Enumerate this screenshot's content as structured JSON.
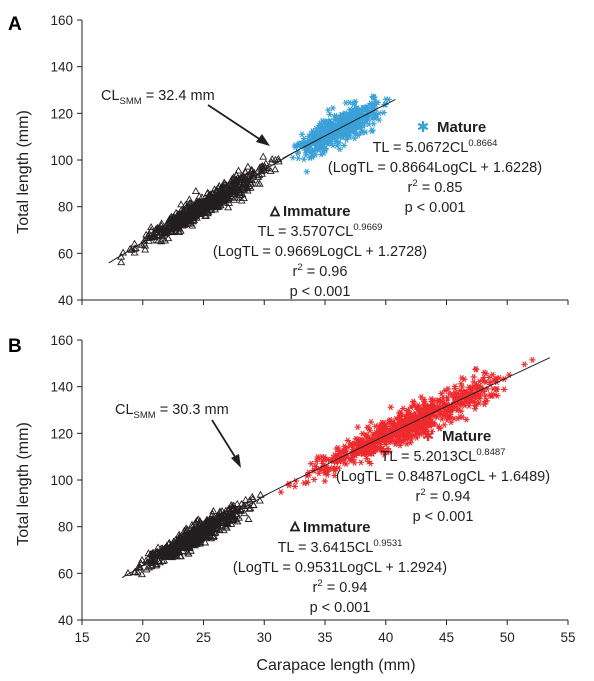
{
  "x_axis_label": "Carapace length (mm)",
  "y_axis_label": "Total length (mm)",
  "chart_data": [
    {
      "panel": "A",
      "type": "scatter",
      "xlabel": "",
      "ylabel": "Total length (mm)",
      "xlim": [
        15,
        55
      ],
      "ylim": [
        40,
        160
      ],
      "x_ticks": [],
      "y_ticks": [
        "40",
        "60",
        "80",
        "100",
        "120",
        "140",
        "160"
      ],
      "grid": false,
      "marker": "triangle",
      "series": [
        {
          "name": "Immature",
          "marker": "open-triangle",
          "color": "#231f20",
          "x_range": [
            17.2,
            32.4
          ],
          "equation": "TL = 3.5707CL^0.9669",
          "a": 3.5707,
          "b": 0.9669,
          "log_form": "(LogTL = 0.9669LogCL + 1.2728)",
          "r2": 0.96,
          "p": "p < 0.001"
        },
        {
          "name": "Mature",
          "marker": "asterisk",
          "color": "#3aa0d8",
          "x_range": [
            31.5,
            40.8
          ],
          "equation": "TL = 5.0672CL^0.8664",
          "a": 5.0672,
          "b": 0.8664,
          "log_form": "(LogTL = 0.8664LogCL + 1.6228)",
          "r2": 0.85,
          "p": "p < 0.001"
        }
      ],
      "annotations": {
        "cl_smm_prefix": "CL",
        "cl_smm_sub": "SMM",
        "cl_smm_value": " = 32.4 mm",
        "immature_label": "Immature",
        "immature_eq_main": "TL = 3.5707CL",
        "immature_eq_exp": "0.9669",
        "immature_log": "(LogTL = 0.9669LogCL + 1.2728)",
        "immature_r2_label": "r",
        "immature_r2_exp": "2",
        "immature_r2_value": " = 0.96",
        "immature_p": "p < 0.001",
        "mature_label": "Mature",
        "mature_eq_main": "TL = 5.0672CL",
        "mature_eq_exp": "0.8664",
        "mature_log": "(LogTL = 0.8664LogCL + 1.6228)",
        "mature_r2_label": "r",
        "mature_r2_exp": "2",
        "mature_r2_value": " = 0.85",
        "mature_p": "p < 0.001"
      }
    },
    {
      "panel": "B",
      "type": "scatter",
      "xlabel": "Carapace length (mm)",
      "ylabel": "Total length (mm)",
      "xlim": [
        15,
        55
      ],
      "ylim": [
        40,
        160
      ],
      "x_ticks": [
        "15",
        "20",
        "25",
        "30",
        "35",
        "40",
        "45",
        "50",
        "55"
      ],
      "y_ticks": [
        "40",
        "60",
        "80",
        "100",
        "120",
        "140",
        "160"
      ],
      "grid": false,
      "series": [
        {
          "name": "Immature",
          "marker": "open-triangle",
          "color": "#231f20",
          "x_range": [
            18.3,
            30.3
          ],
          "equation": "TL = 3.6415CL^0.9531",
          "a": 3.6415,
          "b": 0.9531,
          "log_form": "(LogTL = 0.9531LogCL + 1.2924)",
          "r2": 0.94,
          "p": "p < 0.001"
        },
        {
          "name": "Mature",
          "marker": "asterisk",
          "color": "#ee2a2e",
          "x_range": [
            29.8,
            53.5
          ],
          "equation": "TL = 5.2013CL^0.8487",
          "a": 5.2013,
          "b": 0.8487,
          "log_form": "(LogTL = 0.8487LogCL + 1.6489)",
          "r2": 0.94,
          "p": "p < 0.001"
        }
      ],
      "annotations": {
        "cl_smm_prefix": "CL",
        "cl_smm_sub": "SMM",
        "cl_smm_value": " = 30.3 mm",
        "immature_label": "Immature",
        "immature_eq_main": "TL = 3.6415CL",
        "immature_eq_exp": "0.9531",
        "immature_log": "(LogTL = 0.9531LogCL + 1.2924)",
        "immature_r2_label": "r",
        "immature_r2_exp": "2",
        "immature_r2_value": " = 0.94",
        "immature_p": "p < 0.001",
        "mature_label": "Mature",
        "mature_eq_main": "TL = 5.2013CL",
        "mature_eq_exp": "0.8487",
        "mature_log": "(LogTL = 0.8487LogCL + 1.6489)",
        "mature_r2_label": "r",
        "mature_r2_exp": "2",
        "mature_r2_value": " = 0.94",
        "mature_p": "p < 0.001"
      }
    }
  ]
}
